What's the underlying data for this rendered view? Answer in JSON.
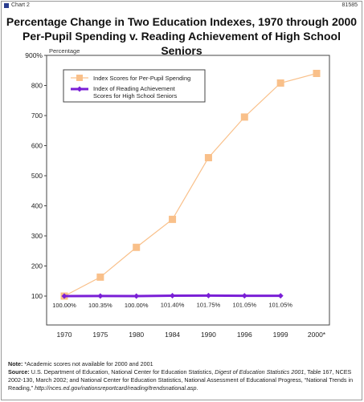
{
  "header": {
    "chart_label": "Chart 2",
    "chart_id": "81585"
  },
  "chart_data": {
    "type": "line",
    "title_line1": "Percentage Change in Two Education Indexes, 1970 through 2000",
    "title_line2": "Per-Pupil Spending v. Reading Achievement of High School Seniors",
    "ylabel": "Percentage",
    "ylim": [
      100,
      900
    ],
    "y_ticks": [
      "900%",
      "800",
      "700",
      "600",
      "500",
      "400",
      "300",
      "200",
      "100"
    ],
    "x": [
      "1970",
      "1975",
      "1980",
      "1984",
      "1990",
      "1996",
      "1999",
      "2000*"
    ],
    "legend_placement": "top-left",
    "series": [
      {
        "name": "Index Scores for Per-Pupil Spending",
        "color": "#f9c08a",
        "marker": "square",
        "values": [
          100,
          163,
          262,
          355,
          560,
          695,
          808,
          840
        ]
      },
      {
        "name": "Index of Reading Achievement Scores for High School Seniors",
        "name_line1": "Index of Reading Achievement",
        "name_line2": "Scores for High School Seniors",
        "color": "#7a1fd6",
        "marker": "diamond",
        "values": [
          100,
          100.35,
          100,
          101.4,
          101.75,
          101.05,
          101.05,
          null
        ],
        "data_labels": [
          "100.00%",
          "100.35%",
          "100.00%",
          "101.40%",
          "101.75%",
          "101.05%",
          "101.05%"
        ]
      }
    ]
  },
  "notes": {
    "note_label": "Note:",
    "note_text": " *Academic scores not available for 2000 and 2001",
    "source_label": "Source:",
    "source_text1": " U.S. Department of Education, National Center for Education Statistics, ",
    "source_italic1": "Digest of Education Statistics 2001",
    "source_text2": ", Table 167, NCES 2002-130, March 2002; and National Center for Education Statistics, National Assessment of Educational Progress, “National Trends in Reading,” ",
    "source_italic2": "http://nces.ed.gov/nationsreportcard/reading/trendsnational.asp",
    "source_text3": "."
  }
}
